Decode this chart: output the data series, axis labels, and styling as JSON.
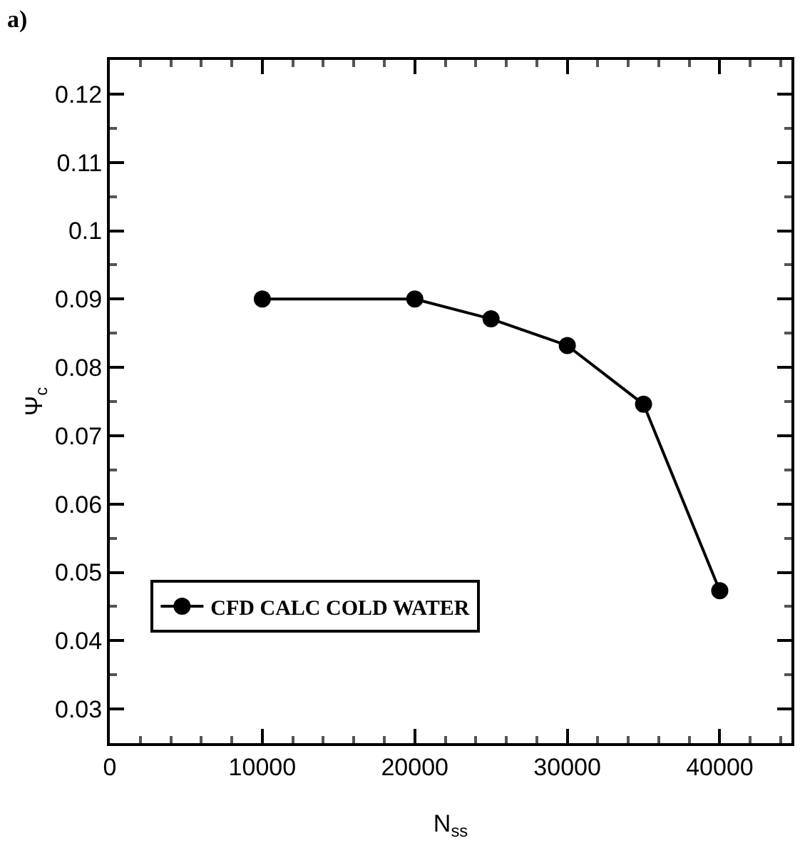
{
  "chart_data": {
    "type": "line",
    "xlabel": "N$_{ss}$",
    "ylabel": "Ψ$_{c}$",
    "annotations": [
      "a)"
    ],
    "x": [
      10000,
      20000,
      25000,
      30000,
      35000,
      40000
    ],
    "series": [
      {
        "name": "CFD CALC COLD WATER",
        "color": "#000000",
        "values": [
          0.09,
          0.09,
          0.0871,
          0.0832,
          0.0746,
          0.0473
        ]
      }
    ],
    "xlim": [
      0,
      44700
    ],
    "xticks": [
      0,
      10000,
      20000,
      30000,
      40000
    ],
    "ylim": [
      0.025,
      0.125
    ],
    "yticks": [
      0.03,
      0.04,
      0.05,
      0.06,
      0.07,
      0.08,
      0.09,
      0.1,
      0.11,
      0.12
    ],
    "grid": false,
    "legend": "bottom left",
    "marker": "circle",
    "line_style": "solid"
  }
}
